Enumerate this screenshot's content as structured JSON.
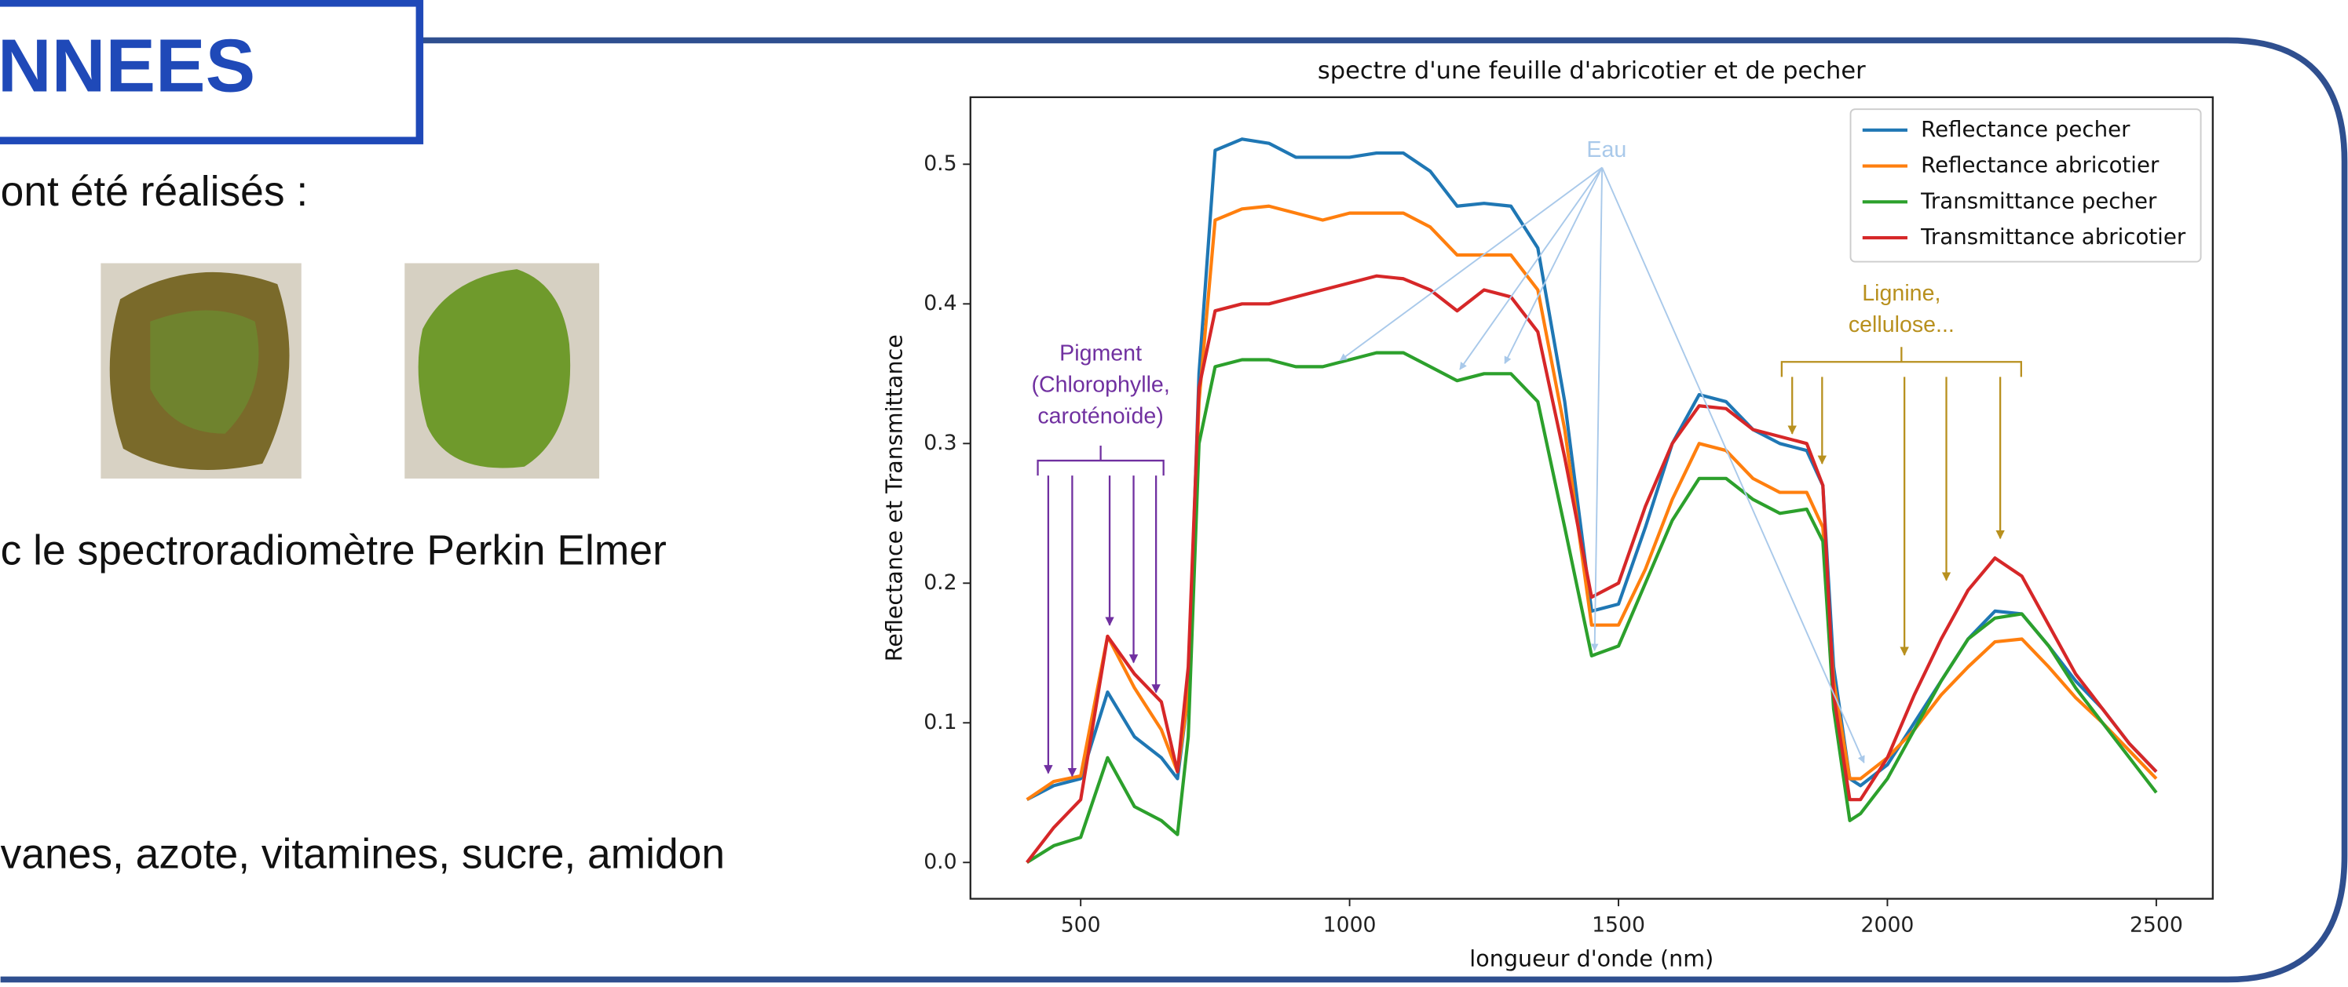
{
  "slide": {
    "title": "NNEES",
    "lines": [
      "ont été réalisés :",
      "c le spectroradiomètre Perkin Elmer",
      "vanes, azote, vitamines, sucre, amidon"
    ]
  },
  "chart_data": {
    "type": "line",
    "title": "spectre d'une feuille d'abricotier et de pecher",
    "x_label": "longueur d'onde (nm)",
    "y_label": "Reflectance et Transmittance",
    "x": [
      400,
      450,
      500,
      550,
      600,
      650,
      680,
      700,
      720,
      750,
      800,
      850,
      900,
      950,
      1000,
      1050,
      1100,
      1150,
      1200,
      1250,
      1300,
      1350,
      1400,
      1450,
      1500,
      1550,
      1600,
      1650,
      1700,
      1750,
      1800,
      1850,
      1880,
      1900,
      1930,
      1950,
      2000,
      2050,
      2100,
      2150,
      2200,
      2250,
      2300,
      2350,
      2400,
      2450,
      2500
    ],
    "series": [
      {
        "name": "Reflectance pecher",
        "color": "#1f77b4",
        "values": [
          0.045,
          0.055,
          0.06,
          0.122,
          0.09,
          0.075,
          0.06,
          0.12,
          0.35,
          0.51,
          0.518,
          0.515,
          0.505,
          0.505,
          0.505,
          0.508,
          0.508,
          0.495,
          0.47,
          0.472,
          0.47,
          0.44,
          0.33,
          0.18,
          0.185,
          0.24,
          0.3,
          0.335,
          0.33,
          0.31,
          0.3,
          0.295,
          0.27,
          0.14,
          0.06,
          0.055,
          0.07,
          0.1,
          0.13,
          0.16,
          0.18,
          0.178,
          0.155,
          0.13,
          0.11,
          0.085,
          0.065
        ]
      },
      {
        "name": "Reflectance abricotier",
        "color": "#ff7f0e",
        "values": [
          0.045,
          0.058,
          0.062,
          0.162,
          0.125,
          0.095,
          0.065,
          0.12,
          0.33,
          0.46,
          0.468,
          0.47,
          0.465,
          0.46,
          0.465,
          0.465,
          0.465,
          0.455,
          0.435,
          0.435,
          0.435,
          0.41,
          0.31,
          0.17,
          0.17,
          0.21,
          0.26,
          0.3,
          0.295,
          0.275,
          0.265,
          0.265,
          0.24,
          0.13,
          0.06,
          0.06,
          0.075,
          0.095,
          0.12,
          0.14,
          0.158,
          0.16,
          0.14,
          0.118,
          0.1,
          0.08,
          0.06
        ]
      },
      {
        "name": "Transmittance pecher",
        "color": "#2ca02c",
        "values": [
          0.0,
          0.012,
          0.018,
          0.075,
          0.04,
          0.03,
          0.02,
          0.09,
          0.3,
          0.355,
          0.36,
          0.36,
          0.355,
          0.355,
          0.36,
          0.365,
          0.365,
          0.355,
          0.345,
          0.35,
          0.35,
          0.33,
          0.24,
          0.148,
          0.155,
          0.2,
          0.245,
          0.275,
          0.275,
          0.26,
          0.25,
          0.253,
          0.23,
          0.11,
          0.03,
          0.035,
          0.06,
          0.095,
          0.13,
          0.16,
          0.175,
          0.178,
          0.155,
          0.125,
          0.1,
          0.075,
          0.05
        ]
      },
      {
        "name": "Transmittance abricotier",
        "color": "#d62728",
        "values": [
          0.0,
          0.025,
          0.045,
          0.162,
          0.135,
          0.115,
          0.065,
          0.14,
          0.34,
          0.395,
          0.4,
          0.4,
          0.405,
          0.41,
          0.415,
          0.42,
          0.418,
          0.41,
          0.395,
          0.41,
          0.405,
          0.38,
          0.29,
          0.19,
          0.2,
          0.255,
          0.3,
          0.327,
          0.325,
          0.31,
          0.305,
          0.3,
          0.27,
          0.12,
          0.045,
          0.045,
          0.075,
          0.12,
          0.16,
          0.195,
          0.218,
          0.205,
          0.17,
          0.135,
          0.11,
          0.085,
          0.065
        ]
      }
    ],
    "xlim": [
      295,
      2605
    ],
    "ylim": [
      -0.026,
      0.548
    ],
    "xticks": [
      500,
      1000,
      1500,
      2000,
      2500
    ],
    "yticks": [
      {
        "value": 0,
        "label": "0.0"
      },
      0.1,
      0.2,
      0.3,
      0.4,
      0.5
    ],
    "legend": "upper right",
    "annotations": {
      "eau": {
        "lines": [
          "Eau"
        ],
        "color": "#a9c9ea"
      },
      "pigment": {
        "lines": [
          "Pigment",
          "(Chlorophylle,",
          "caroténoïde)"
        ],
        "color": "#7030a0"
      },
      "lignine": {
        "lines": [
          "Lignine,",
          "cellulose..."
        ],
        "color": "#b8901e"
      }
    }
  }
}
